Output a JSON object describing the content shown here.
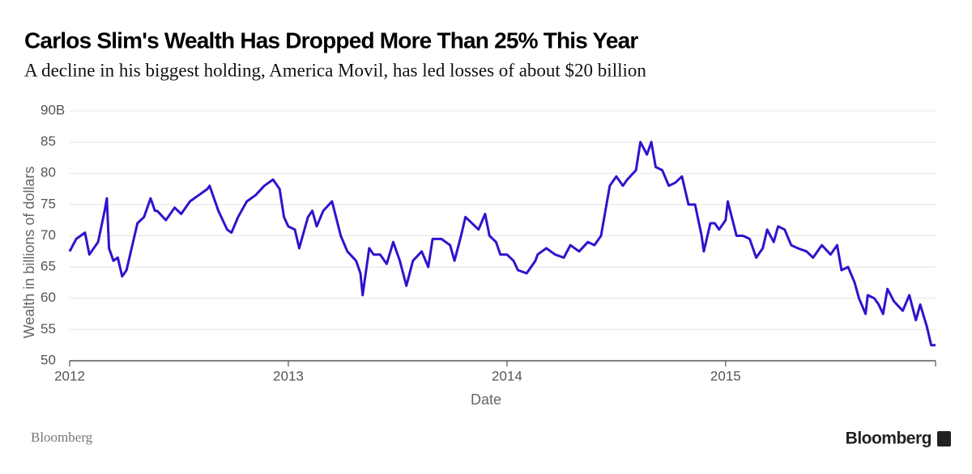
{
  "chart_data": {
    "type": "line",
    "title": "Carlos Slim's Wealth Has Dropped More Than 25% This Year",
    "subtitle": "A decline in his biggest holding, America Movil, has led losses of about $20 billion",
    "y_label": "Wealth in billions of dollars",
    "x_label": "Date",
    "source": "Bloomberg",
    "logo": "Bloomberg",
    "x": [
      2012.0,
      2012.03,
      2012.07,
      2012.09,
      2012.13,
      2012.16,
      2012.17,
      2012.18,
      2012.2,
      2012.22,
      2012.24,
      2012.26,
      2012.27,
      2012.29,
      2012.31,
      2012.34,
      2012.37,
      2012.39,
      2012.4,
      2012.44,
      2012.48,
      2012.51,
      2012.55,
      2012.59,
      2012.63,
      2012.64,
      2012.68,
      2012.72,
      2012.74,
      2012.77,
      2012.81,
      2012.85,
      2012.89,
      2012.93,
      2012.96,
      2012.98,
      2013.0,
      2013.03,
      2013.05,
      2013.09,
      2013.11,
      2013.13,
      2013.16,
      2013.2,
      2013.24,
      2013.27,
      2013.31,
      2013.33,
      2013.34,
      2013.37,
      2013.39,
      2013.42,
      2013.45,
      2013.48,
      2013.51,
      2013.54,
      2013.57,
      2013.61,
      2013.64,
      2013.66,
      2013.7,
      2013.74,
      2013.76,
      2013.79,
      2013.81,
      2013.84,
      2013.87,
      2013.9,
      2013.92,
      2013.95,
      2013.97,
      2014.0,
      2014.03,
      2014.05,
      2014.09,
      2014.13,
      2014.14,
      2014.18,
      2014.22,
      2014.26,
      2014.29,
      2014.33,
      2014.37,
      2014.4,
      2014.43,
      2014.45,
      2014.47,
      2014.5,
      2014.53,
      2014.55,
      2014.59,
      2014.61,
      2014.64,
      2014.66,
      2014.68,
      2014.71,
      2014.74,
      2014.77,
      2014.8,
      2014.83,
      2014.86,
      2014.89,
      2014.9,
      2014.93,
      2014.95,
      2014.97,
      2015.0,
      2015.01,
      2015.05,
      2015.08,
      2015.11,
      2015.14,
      2015.17,
      2015.19,
      2015.22,
      2015.24,
      2015.27,
      2015.3,
      2015.33,
      2015.37,
      2015.4,
      2015.44,
      2015.48,
      2015.51,
      2015.53,
      2015.56,
      2015.59,
      2015.61,
      2015.64,
      2015.65,
      2015.68,
      2015.7,
      2015.72,
      2015.74,
      2015.77,
      2015.81,
      2015.84,
      2015.87,
      2015.89,
      2015.92,
      2015.94,
      2015.96
    ],
    "series": [
      {
        "name": "Wealth",
        "color": "#3311cc",
        "values": [
          67.5,
          69.5,
          70.5,
          67,
          69,
          74,
          76,
          68,
          66,
          66.5,
          63.5,
          64.5,
          66,
          69,
          72,
          73,
          76,
          74,
          74,
          72.5,
          74.5,
          73.5,
          75.5,
          76.5,
          77.5,
          78,
          74,
          71,
          70.5,
          73,
          75.5,
          76.5,
          78,
          79,
          77.5,
          73,
          71.5,
          71,
          68,
          73,
          74,
          71.5,
          74,
          75.5,
          70,
          67.5,
          66,
          64,
          60.5,
          68,
          67,
          67,
          65.5,
          69,
          66,
          62,
          66,
          67.5,
          65,
          69.5,
          69.5,
          68.5,
          66,
          70,
          73,
          72,
          71,
          73.5,
          70,
          69,
          67,
          67,
          66,
          64.5,
          64,
          66,
          67,
          68,
          67,
          66.5,
          68.5,
          67.5,
          69,
          68.5,
          70,
          74,
          78,
          79.5,
          78,
          79,
          80.5,
          85,
          83,
          85,
          81,
          80.5,
          78,
          78.5,
          79.5,
          75,
          75,
          70,
          67.5,
          72,
          72,
          71,
          72.5,
          75.5,
          70,
          70,
          69.5,
          66.5,
          68,
          71,
          69,
          71.5,
          71,
          68.5,
          68,
          67.5,
          66.5,
          68.5,
          67,
          68.5,
          64.5,
          65,
          62.5,
          60,
          57.5,
          60.5,
          60,
          59,
          57.5,
          61.5,
          59.5,
          58,
          60.5,
          56.5,
          59,
          55.5,
          52.5,
          52.5
        ]
      }
    ],
    "xlim": [
      2012,
      2015.96
    ],
    "xticks": [
      2012,
      2013,
      2014,
      2015
    ],
    "ylim": [
      50,
      90
    ],
    "yticks": [
      50,
      55,
      60,
      65,
      70,
      75,
      80,
      85,
      {
        "value": 90,
        "label": "90B"
      }
    ],
    "grid": true
  }
}
